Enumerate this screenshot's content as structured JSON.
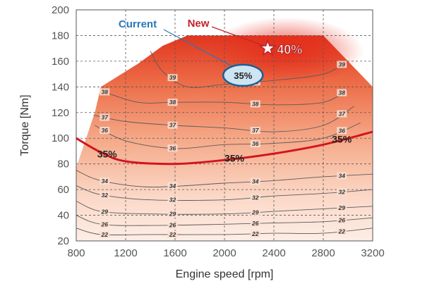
{
  "chart_data": {
    "type": "contour",
    "title": "",
    "xlabel": "Engine speed [rpm]",
    "ylabel": "Torque [Nm]",
    "xlim": [
      800,
      3200
    ],
    "ylim": [
      20,
      200
    ],
    "xticks": [
      800,
      1200,
      1600,
      2000,
      2400,
      2800,
      3200
    ],
    "yticks": [
      20,
      40,
      60,
      80,
      100,
      120,
      140,
      160,
      180,
      200
    ],
    "grid": "dashed",
    "efficiency_unit": "%",
    "envelope": [
      [
        800,
        77
      ],
      [
        950,
        120
      ],
      [
        1000,
        140
      ],
      [
        1300,
        158
      ],
      [
        1500,
        172
      ],
      [
        1700,
        180
      ],
      [
        2800,
        180
      ],
      [
        3000,
        160
      ],
      [
        3200,
        140
      ],
      [
        3200,
        20
      ],
      [
        800,
        20
      ]
    ],
    "contours": [
      {
        "level": 22,
        "label": "22",
        "points": [
          [
            800,
            30
          ],
          [
            1000,
            25
          ],
          [
            1400,
            25
          ],
          [
            2000,
            25
          ],
          [
            2400,
            26
          ],
          [
            2800,
            26
          ],
          [
            3200,
            30
          ]
        ]
      },
      {
        "level": 26,
        "label": "26",
        "points": [
          [
            800,
            40
          ],
          [
            1000,
            33
          ],
          [
            1400,
            32
          ],
          [
            2000,
            33
          ],
          [
            2400,
            34
          ],
          [
            2800,
            35
          ],
          [
            3200,
            38
          ]
        ]
      },
      {
        "level": 29,
        "label": "29",
        "points": [
          [
            800,
            51
          ],
          [
            1000,
            43
          ],
          [
            1400,
            41
          ],
          [
            2000,
            41
          ],
          [
            2400,
            43
          ],
          [
            2800,
            45
          ],
          [
            3200,
            47
          ]
        ]
      },
      {
        "level": 32,
        "label": "32",
        "points": [
          [
            800,
            63
          ],
          [
            1000,
            56
          ],
          [
            1400,
            52
          ],
          [
            2000,
            52
          ],
          [
            2400,
            55
          ],
          [
            2800,
            57
          ],
          [
            3200,
            60
          ]
        ]
      },
      {
        "level": 34,
        "label": "34",
        "points": [
          [
            800,
            75
          ],
          [
            1000,
            67
          ],
          [
            1400,
            62
          ],
          [
            2000,
            65
          ],
          [
            2400,
            67
          ],
          [
            2800,
            70
          ],
          [
            3200,
            72
          ]
        ]
      },
      {
        "level": 35,
        "label": "35%",
        "highlight": true,
        "points": [
          [
            800,
            100
          ],
          [
            1000,
            89
          ],
          [
            1200,
            82
          ],
          [
            1600,
            80
          ],
          [
            2000,
            83
          ],
          [
            2400,
            88
          ],
          [
            2800,
            95
          ],
          [
            3200,
            105
          ]
        ]
      },
      {
        "level": 36,
        "label": "36",
        "points": [
          [
            950,
            110
          ],
          [
            1200,
            98
          ],
          [
            1600,
            92
          ],
          [
            2000,
            95
          ],
          [
            2400,
            96
          ],
          [
            2800,
            100
          ],
          [
            3100,
            112
          ]
        ]
      },
      {
        "level": 37,
        "label": "37",
        "points": [
          [
            940,
            118
          ],
          [
            1200,
            113
          ],
          [
            1600,
            110
          ],
          [
            2000,
            108
          ],
          [
            2400,
            105
          ],
          [
            2800,
            110
          ],
          [
            3050,
            125
          ]
        ]
      },
      {
        "level": 38,
        "label": "38",
        "points": [
          [
            1000,
            137
          ],
          [
            1300,
            128
          ],
          [
            1600,
            128
          ],
          [
            2000,
            128
          ],
          [
            2400,
            126
          ],
          [
            2800,
            128
          ],
          [
            3000,
            138
          ]
        ]
      },
      {
        "level": 39,
        "label": "39",
        "points": [
          [
            1400,
            168
          ],
          [
            1500,
            152
          ],
          [
            1700,
            140
          ],
          [
            2000,
            142
          ],
          [
            2400,
            145
          ],
          [
            2800,
            150
          ],
          [
            3000,
            160
          ]
        ]
      }
    ],
    "annotations": [
      {
        "label": "Current",
        "value": "35%",
        "x": 2150,
        "y": 149
      },
      {
        "label": "New",
        "value": "40%",
        "x": 2350,
        "y": 170
      }
    ]
  }
}
